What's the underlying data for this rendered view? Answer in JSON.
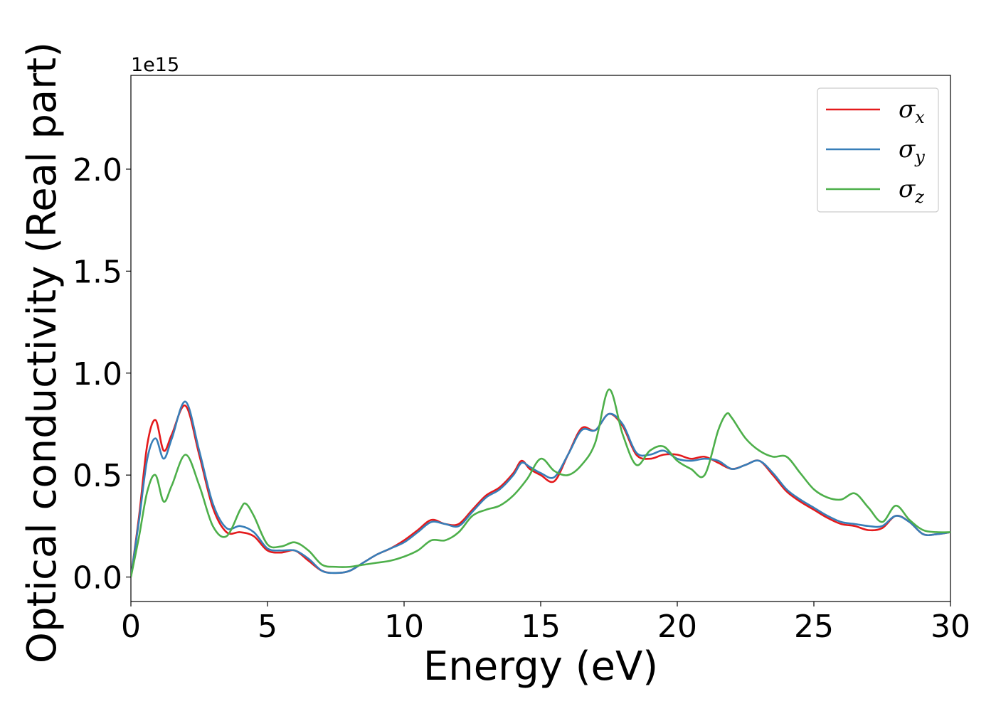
{
  "chart_data": {
    "type": "line",
    "xlabel": "Energy (eV)",
    "ylabel": "Optical conductivity (Real part)",
    "y_offset_label": "1e15",
    "xlim": [
      0,
      30
    ],
    "ylim": [
      -0.12,
      2.46
    ],
    "xticks": [
      0,
      5,
      10,
      15,
      20,
      25,
      30
    ],
    "xtick_labels": [
      "0",
      "5",
      "10",
      "15",
      "20",
      "25",
      "30"
    ],
    "yticks": [
      0.0,
      0.5,
      1.0,
      1.5,
      2.0
    ],
    "ytick_labels": [
      "0.0",
      "0.5",
      "1.0",
      "1.5",
      "2.0"
    ],
    "grid": false,
    "legend_position": "top-right",
    "series": [
      {
        "name": "σx",
        "base": "σ",
        "sub": "x",
        "color": "#e41a1c",
        "x": [
          0,
          0.3,
          0.6,
          0.9,
          1.2,
          1.5,
          2.0,
          2.5,
          3.0,
          3.5,
          4.0,
          4.5,
          5.0,
          5.5,
          6.0,
          6.5,
          7.0,
          7.5,
          8.0,
          8.5,
          9.0,
          9.5,
          10.0,
          10.5,
          11.0,
          11.5,
          12.0,
          12.5,
          13.0,
          13.5,
          14.0,
          14.3,
          14.6,
          15.0,
          15.5,
          16.0,
          16.5,
          17.0,
          17.5,
          18.0,
          18.5,
          19.0,
          19.5,
          20.0,
          20.5,
          21.0,
          21.5,
          22.0,
          22.5,
          23.0,
          23.5,
          24.0,
          24.5,
          25.0,
          25.5,
          26.0,
          26.5,
          27.0,
          27.5,
          28.0,
          28.5,
          29.0,
          29.5,
          30.0
        ],
        "y": [
          0.0,
          0.3,
          0.65,
          0.77,
          0.62,
          0.7,
          0.84,
          0.6,
          0.34,
          0.22,
          0.22,
          0.2,
          0.13,
          0.12,
          0.13,
          0.08,
          0.03,
          0.02,
          0.03,
          0.07,
          0.11,
          0.14,
          0.18,
          0.23,
          0.28,
          0.26,
          0.26,
          0.33,
          0.4,
          0.44,
          0.51,
          0.57,
          0.53,
          0.5,
          0.47,
          0.6,
          0.73,
          0.72,
          0.8,
          0.74,
          0.6,
          0.58,
          0.6,
          0.6,
          0.58,
          0.59,
          0.56,
          0.53,
          0.55,
          0.57,
          0.5,
          0.42,
          0.37,
          0.33,
          0.29,
          0.26,
          0.25,
          0.23,
          0.24,
          0.3,
          0.27,
          0.21,
          0.21,
          0.22
        ]
      },
      {
        "name": "σy",
        "base": "σ",
        "sub": "y",
        "color": "#377eb8",
        "x": [
          0,
          0.3,
          0.6,
          0.9,
          1.2,
          1.5,
          2.0,
          2.5,
          3.0,
          3.5,
          4.0,
          4.5,
          5.0,
          5.5,
          6.0,
          6.5,
          7.0,
          7.5,
          8.0,
          8.5,
          9.0,
          9.5,
          10.0,
          10.5,
          11.0,
          11.5,
          12.0,
          12.5,
          13.0,
          13.5,
          14.0,
          14.3,
          14.6,
          15.0,
          15.5,
          16.0,
          16.5,
          17.0,
          17.5,
          18.0,
          18.5,
          19.0,
          19.5,
          20.0,
          20.5,
          21.0,
          21.5,
          22.0,
          22.5,
          23.0,
          23.5,
          24.0,
          24.5,
          25.0,
          25.5,
          26.0,
          26.5,
          27.0,
          27.5,
          28.0,
          28.5,
          29.0,
          29.5,
          30.0
        ],
        "y": [
          0.0,
          0.28,
          0.58,
          0.68,
          0.58,
          0.68,
          0.86,
          0.62,
          0.36,
          0.24,
          0.25,
          0.22,
          0.14,
          0.13,
          0.13,
          0.09,
          0.03,
          0.02,
          0.03,
          0.07,
          0.11,
          0.14,
          0.17,
          0.22,
          0.27,
          0.26,
          0.25,
          0.32,
          0.39,
          0.43,
          0.5,
          0.56,
          0.54,
          0.51,
          0.49,
          0.6,
          0.72,
          0.72,
          0.8,
          0.75,
          0.61,
          0.6,
          0.62,
          0.58,
          0.57,
          0.58,
          0.57,
          0.53,
          0.55,
          0.57,
          0.51,
          0.43,
          0.38,
          0.34,
          0.3,
          0.27,
          0.26,
          0.25,
          0.25,
          0.3,
          0.27,
          0.21,
          0.21,
          0.22
        ]
      },
      {
        "name": "σz",
        "base": "σ",
        "sub": "z",
        "color": "#4daf4a",
        "x": [
          0,
          0.3,
          0.6,
          0.9,
          1.2,
          1.5,
          2.0,
          2.5,
          3.0,
          3.5,
          4.0,
          4.2,
          4.5,
          5.0,
          5.5,
          6.0,
          6.5,
          7.0,
          7.5,
          8.0,
          8.5,
          9.0,
          9.5,
          10.0,
          10.5,
          11.0,
          11.5,
          12.0,
          12.5,
          13.0,
          13.5,
          14.0,
          14.5,
          15.0,
          15.5,
          16.0,
          16.5,
          17.0,
          17.5,
          18.0,
          18.5,
          19.0,
          19.5,
          20.0,
          20.5,
          21.0,
          21.5,
          21.8,
          22.0,
          22.5,
          23.0,
          23.5,
          24.0,
          24.5,
          25.0,
          25.5,
          26.0,
          26.5,
          27.0,
          27.5,
          28.0,
          28.5,
          29.0,
          29.5,
          30.0
        ],
        "y": [
          0.0,
          0.2,
          0.42,
          0.5,
          0.37,
          0.45,
          0.6,
          0.45,
          0.25,
          0.2,
          0.33,
          0.36,
          0.3,
          0.16,
          0.15,
          0.17,
          0.13,
          0.06,
          0.05,
          0.05,
          0.06,
          0.07,
          0.08,
          0.1,
          0.13,
          0.18,
          0.18,
          0.22,
          0.3,
          0.33,
          0.35,
          0.4,
          0.48,
          0.58,
          0.52,
          0.5,
          0.55,
          0.66,
          0.92,
          0.7,
          0.55,
          0.62,
          0.64,
          0.57,
          0.53,
          0.5,
          0.72,
          0.8,
          0.78,
          0.68,
          0.62,
          0.59,
          0.59,
          0.51,
          0.43,
          0.39,
          0.38,
          0.41,
          0.34,
          0.27,
          0.35,
          0.28,
          0.23,
          0.22,
          0.22
        ]
      }
    ]
  }
}
